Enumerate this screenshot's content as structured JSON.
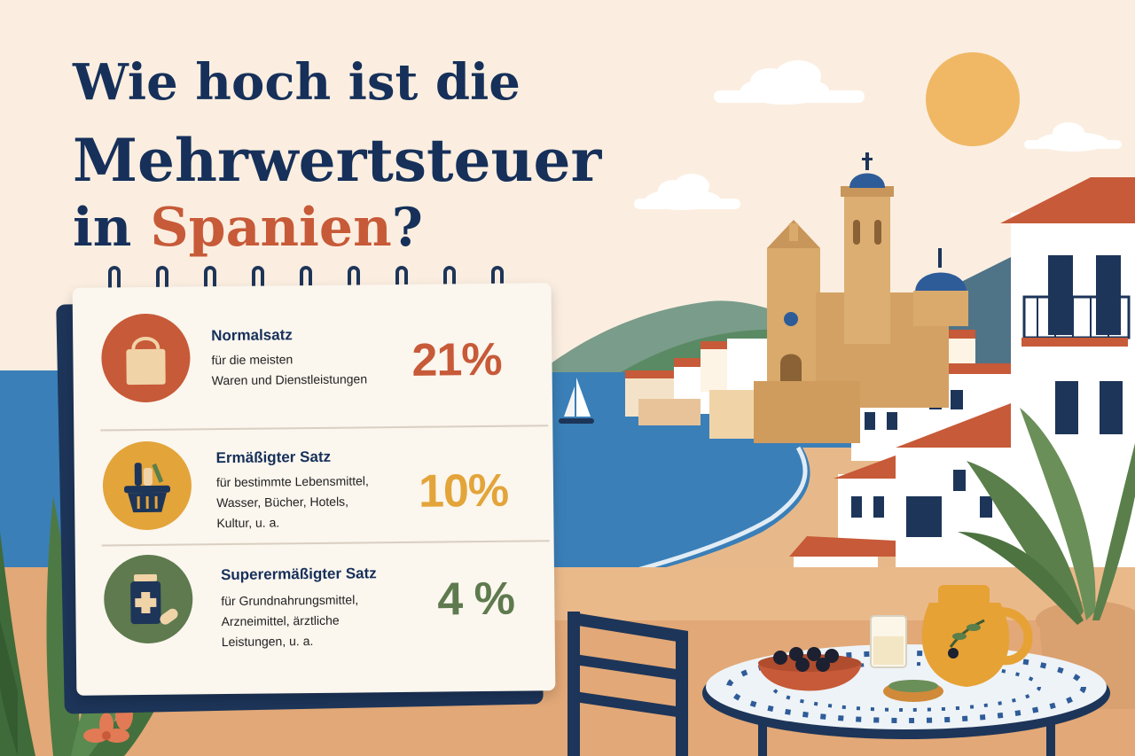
{
  "title": {
    "line1": "Wie hoch ist die",
    "line2": "Mehrwertsteuer",
    "line3_prefix": "in ",
    "line3_highlight": "Spanien",
    "line3_suffix": "?"
  },
  "rates": [
    {
      "icon": "shopping-bag-icon",
      "name": "Normalsatz",
      "description_lines": [
        "für die meisten",
        "Waren und Dienstleistungen"
      ],
      "value": "21%",
      "color": "#c75a38"
    },
    {
      "icon": "grocery-basket-icon",
      "name": "Ermäßigter Satz",
      "description_lines": [
        "für bestimmte Lebensmittel,",
        "Wasser, Bücher, Hotels,",
        "Kultur, u. a."
      ],
      "value": "10%",
      "color": "#e3a43a"
    },
    {
      "icon": "medicine-icon",
      "name": "Superermäßigter Satz",
      "description_lines": [
        "für Grundnahrungsmittel,",
        "Arzneimittel, ärztliche",
        "Leistungen, u. a."
      ],
      "value": "4 %",
      "color": "#5e7a4e"
    }
  ],
  "colors": {
    "navy": "#16305a",
    "terracotta": "#c75a38",
    "sea": "#3a7fb8",
    "sand": "#e7b98a",
    "background": "#fbeee0"
  }
}
